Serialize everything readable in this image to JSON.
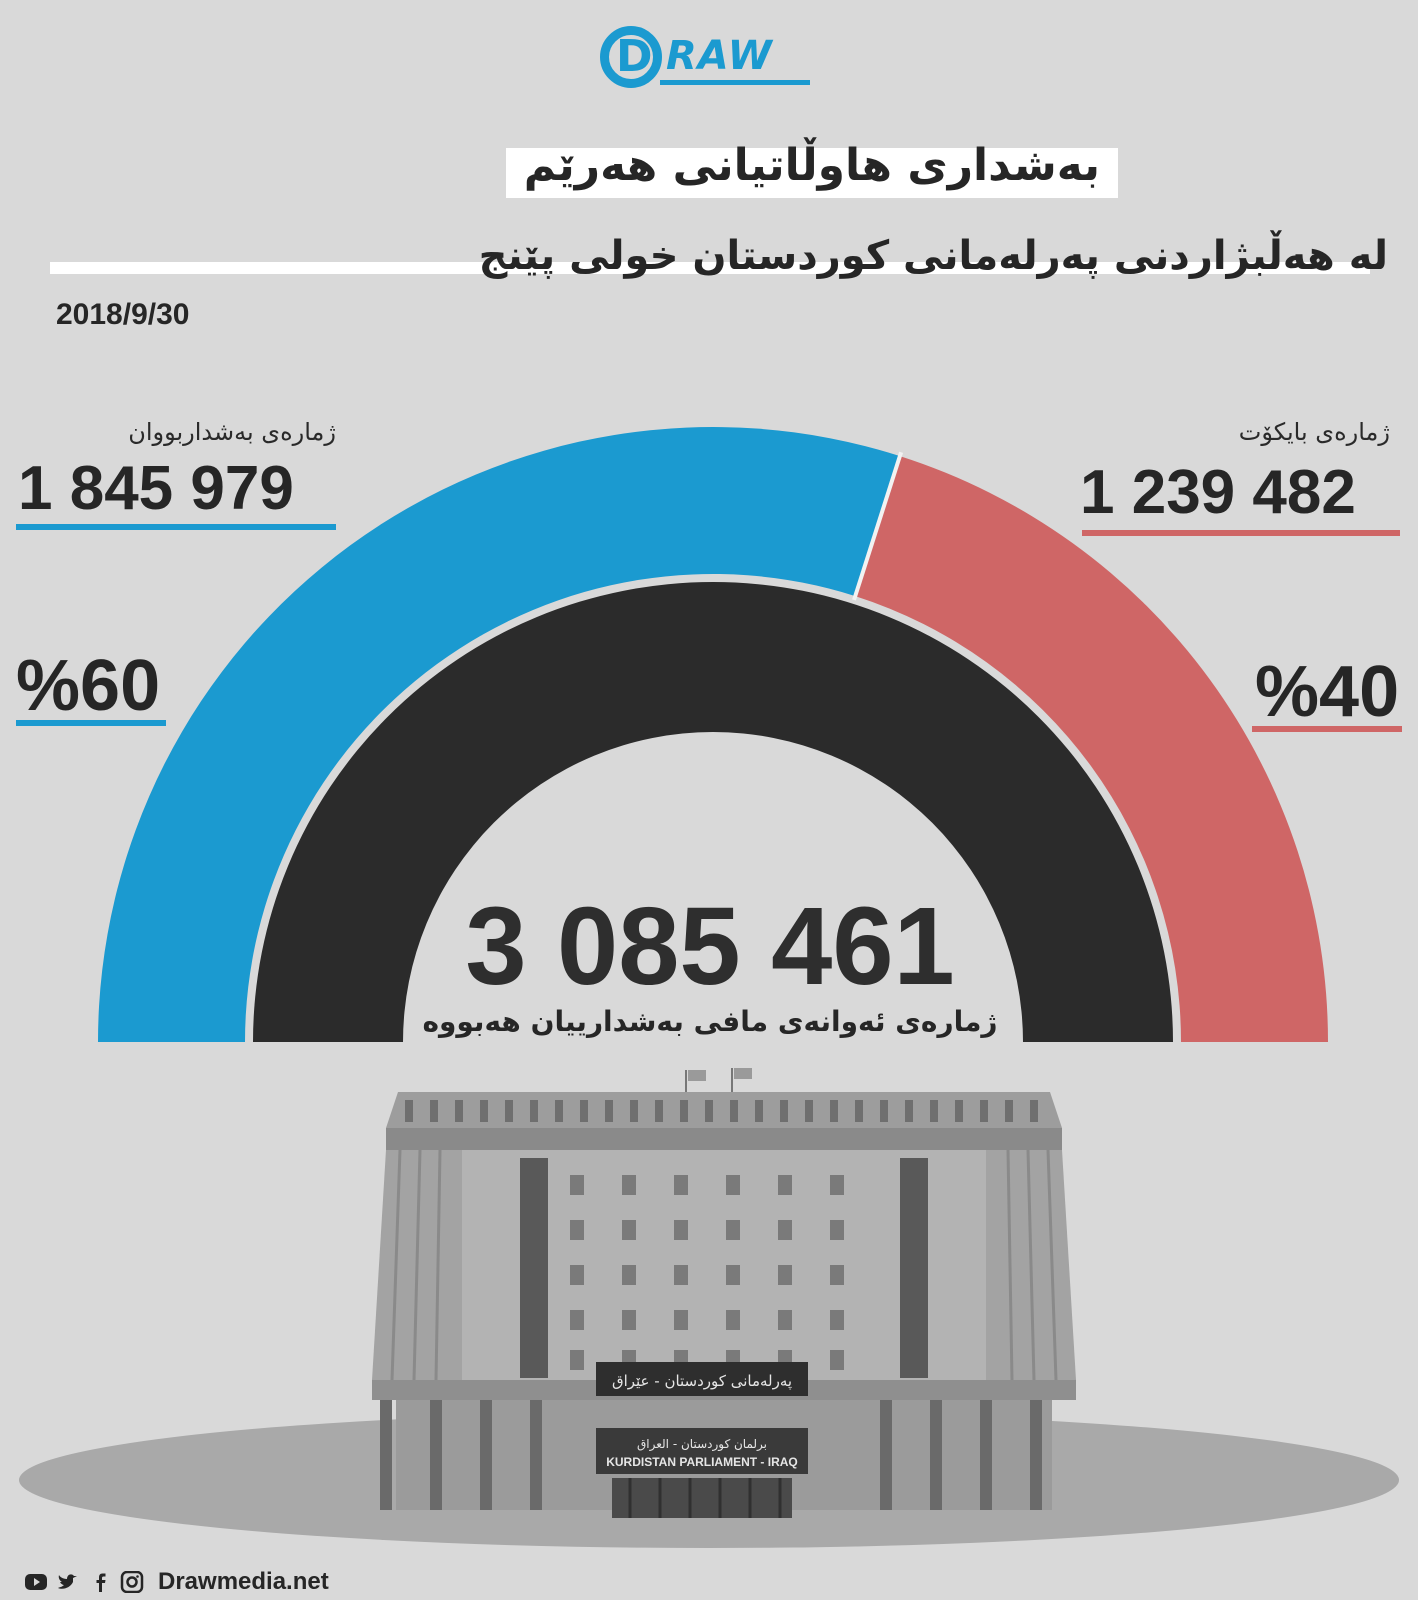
{
  "logo": {
    "letter": "D",
    "word": "RAW"
  },
  "title": "بەشداری هاوڵاتیانی هەرێم",
  "subtitle": "لە هەڵبژاردنی پەرلەمانی کوردستان خولی پێنج",
  "date": "2018/9/30",
  "participants": {
    "label": "ژمارەی بەشداربووان",
    "value": "1 845 979",
    "percent": "%60"
  },
  "boycott": {
    "label": "ژمارەی بایکۆت",
    "value": "1 239 482",
    "percent": "%40"
  },
  "eligible": {
    "value": "3 085 461",
    "label": "ژمارەی ئەوانەی مافی بەشدارییان هەبووە"
  },
  "building_sign": {
    "kurdish": "پەرلەمانی کوردستان - عێراق",
    "arabic": "برلمان كوردستان - العراق",
    "english": "KURDISTAN PARLIAMENT - IRAQ"
  },
  "footer": {
    "site": "Drawmedia.net",
    "icons": [
      "youtube-icon",
      "twitter-icon",
      "facebook-icon",
      "instagram-icon"
    ]
  },
  "colors": {
    "participants": "#1b9ad0",
    "boycott": "#cf6666",
    "eligible": "#2b2b2b",
    "background": "#d9d9d9"
  },
  "chart_data": {
    "type": "pie",
    "shape": "semicircle",
    "title": "بەشداری هاوڵاتیانی هەرێم",
    "slices": [
      {
        "name": "ژمارەی بەشداربووان",
        "value": 1845979,
        "percent": 60,
        "color": "#1b9ad0"
      },
      {
        "name": "ژمارەی بایکۆت",
        "value": 1239482,
        "percent": 40,
        "color": "#cf6666"
      }
    ],
    "total": {
      "name": "ژمارەی ئەوانەی مافی بەشدارییان هەبووە",
      "value": 3085461,
      "color": "#2b2b2b"
    }
  }
}
